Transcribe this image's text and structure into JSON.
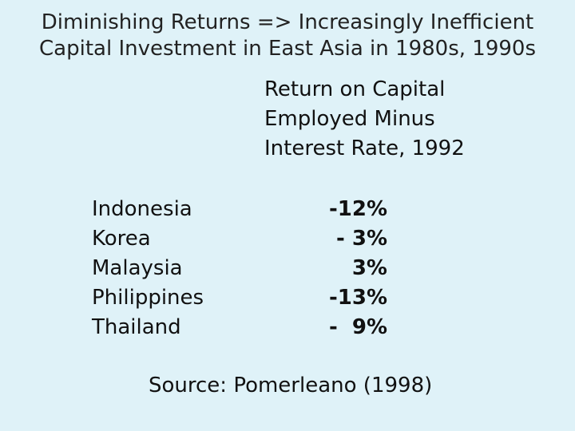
{
  "title": {
    "line1": "Diminishing Returns => Increasingly Inefficient",
    "line2": "Capital Investment in East Asia in 1980s, 1990s"
  },
  "column_header": {
    "line1": "Return on Capital",
    "line2": "Employed Minus",
    "line3": "Interest Rate, 1992"
  },
  "rows": [
    {
      "country": "Indonesia",
      "value": "-12%"
    },
    {
      "country": "Korea",
      "value": "- 3%"
    },
    {
      "country": "Malaysia",
      "value": "3%"
    },
    {
      "country": "Philippines",
      "value": "-13%"
    },
    {
      "country": "Thailand",
      "value": "-  9%"
    }
  ],
  "source": "Source: Pomerleano (1998)",
  "colors": {
    "background": "#dff2f8",
    "text": "#111111"
  }
}
